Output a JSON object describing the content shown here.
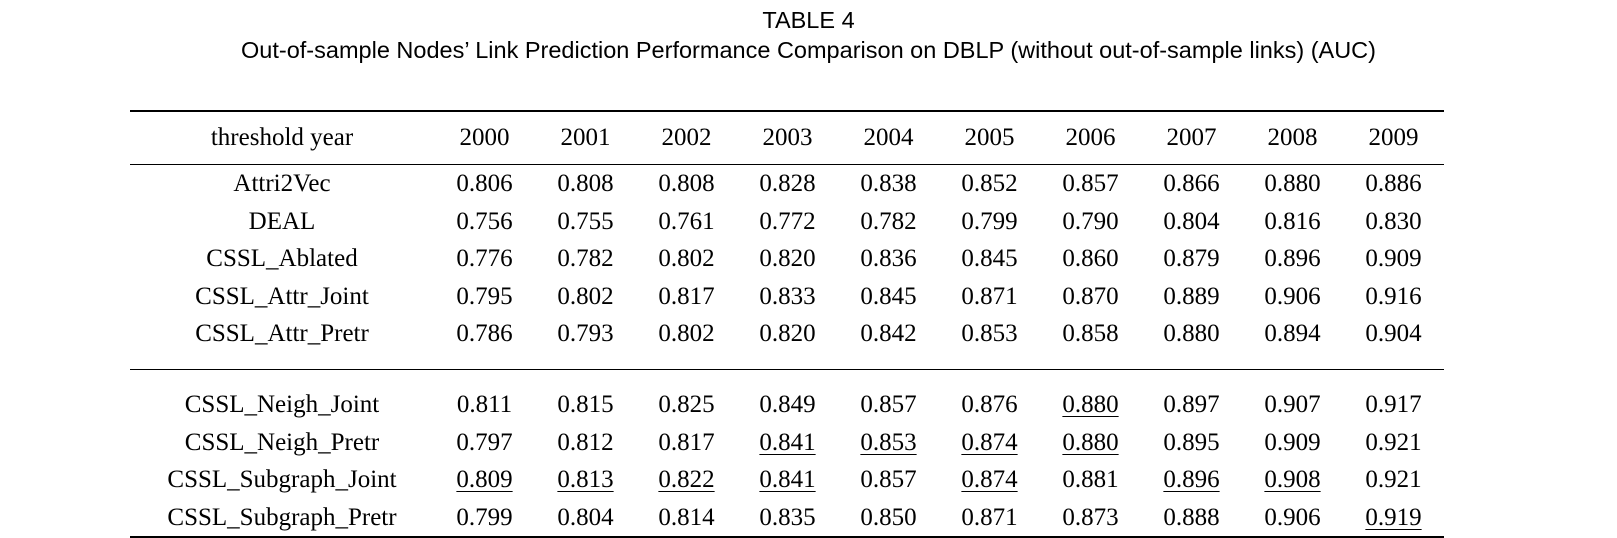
{
  "caption": {
    "label": "TABLE 4",
    "title": "Out-of-sample Nodes’ Link Prediction Performance Comparison on DBLP (without out-of-sample links) (AUC)"
  },
  "table": {
    "row_header": "threshold year",
    "columns": [
      "2000",
      "2001",
      "2002",
      "2003",
      "2004",
      "2005",
      "2006",
      "2007",
      "2008",
      "2009"
    ],
    "group1": [
      {
        "method": "Attri2Vec",
        "values": [
          "0.806",
          "0.808",
          "0.808",
          "0.828",
          "0.838",
          "0.852",
          "0.857",
          "0.866",
          "0.880",
          "0.886"
        ]
      },
      {
        "method": "DEAL",
        "values": [
          "0.756",
          "0.755",
          "0.761",
          "0.772",
          "0.782",
          "0.799",
          "0.790",
          "0.804",
          "0.816",
          "0.830"
        ]
      },
      {
        "method": "CSSL_Ablated",
        "values": [
          "0.776",
          "0.782",
          "0.802",
          "0.820",
          "0.836",
          "0.845",
          "0.860",
          "0.879",
          "0.896",
          "0.909"
        ]
      },
      {
        "method": "CSSL_Attr_Joint",
        "values": [
          "0.795",
          "0.802",
          "0.817",
          "0.833",
          "0.845",
          "0.871",
          "0.870",
          "0.889",
          "0.906",
          "0.916"
        ]
      },
      {
        "method": "CSSL_Attr_Pretr",
        "values": [
          "0.786",
          "0.793",
          "0.802",
          "0.820",
          "0.842",
          "0.853",
          "0.858",
          "0.880",
          "0.894",
          "0.904"
        ]
      }
    ],
    "group2": [
      {
        "method": "CSSL_Neigh_Joint",
        "values": [
          "0.811",
          "0.815",
          "0.825",
          "0.849",
          "0.857",
          "0.876",
          "0.880",
          "0.897",
          "0.907",
          "0.917"
        ],
        "styles": [
          "bold",
          "bold",
          "bold",
          "bold",
          "bold",
          "bold",
          "underline",
          "bold",
          "",
          ""
        ]
      },
      {
        "method": "CSSL_Neigh_Pretr",
        "values": [
          "0.797",
          "0.812",
          "0.817",
          "0.841",
          "0.853",
          "0.874",
          "0.880",
          "0.895",
          "0.909",
          "0.921"
        ],
        "styles": [
          "",
          "",
          "",
          "underline",
          "underline",
          "underline",
          "underline",
          "",
          "bold",
          "bold"
        ]
      },
      {
        "method": "CSSL_Subgraph_Joint",
        "values": [
          "0.809",
          "0.813",
          "0.822",
          "0.841",
          "0.857",
          "0.874",
          "0.881",
          "0.896",
          "0.908",
          "0.921"
        ],
        "styles": [
          "underline",
          "underline",
          "underline",
          "underline",
          "bold",
          "underline",
          "bold",
          "underline",
          "underline",
          "bold"
        ]
      },
      {
        "method": "CSSL_Subgraph_Pretr",
        "values": [
          "0.799",
          "0.804",
          "0.814",
          "0.835",
          "0.850",
          "0.871",
          "0.873",
          "0.888",
          "0.906",
          "0.919"
        ],
        "styles": [
          "",
          "",
          "",
          "",
          "",
          "",
          "",
          "",
          "",
          "underline"
        ]
      }
    ]
  }
}
